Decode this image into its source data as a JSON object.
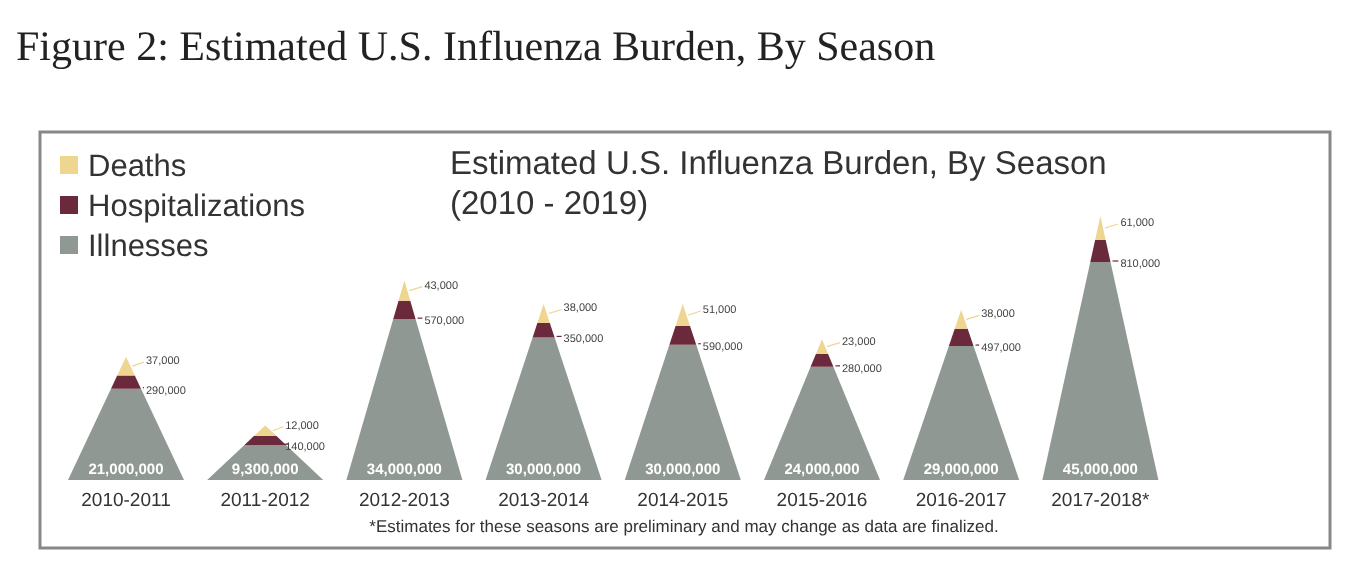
{
  "chart_data": {
    "type": "other",
    "title": "Estimated U.S. Influenza Burden, By Season",
    "subtitle": "(2010 - 2019)",
    "annotations": [
      "Figure 2: Estimated U.S. Influenza Burden, By Season",
      "*Estimates for these seasons are preliminary and may change as data are finalized."
    ],
    "categories": [
      "2010-2011",
      "2011-2012",
      "2012-2013",
      "2013-2014",
      "2014-2015",
      "2015-2016",
      "2016-2017",
      "2017-2018*"
    ],
    "series": [
      {
        "name": "Illnesses",
        "color": "#8f9893",
        "values": [
          21000000,
          9300000,
          34000000,
          30000000,
          30000000,
          24000000,
          29000000,
          45000000
        ],
        "value_labels": [
          "21,000,000",
          "9,300,000",
          "34,000,000",
          "30,000,000",
          "30,000,000",
          "24,000,000",
          "29,000,000",
          "45,000,000"
        ]
      },
      {
        "name": "Hospitalizations",
        "color": "#6b2a3b",
        "values": [
          290000,
          140000,
          570000,
          350000,
          590000,
          280000,
          497000,
          810000
        ],
        "value_labels": [
          "290,000",
          "140,000",
          "570,000",
          "350,000",
          "590,000",
          "280,000",
          "497,000",
          "810,000"
        ]
      },
      {
        "name": "Deaths",
        "color": "#eed590",
        "values": [
          37000,
          12000,
          43000,
          38000,
          51000,
          23000,
          38000,
          61000
        ],
        "value_labels": [
          "37,000",
          "12,000",
          "43,000",
          "38,000",
          "51,000",
          "23,000",
          "38,000",
          "61,000"
        ]
      }
    ],
    "legend": "top left"
  }
}
